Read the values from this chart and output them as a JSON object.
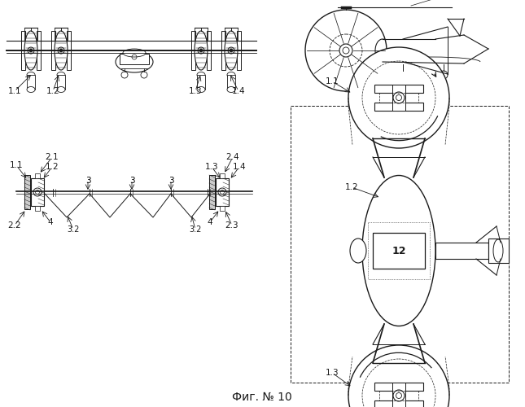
{
  "title": "Фиг. № 10",
  "bg_color": "#ffffff",
  "line_color": "#1a1a1a",
  "title_fontsize": 10,
  "label_fontsize": 7.5
}
